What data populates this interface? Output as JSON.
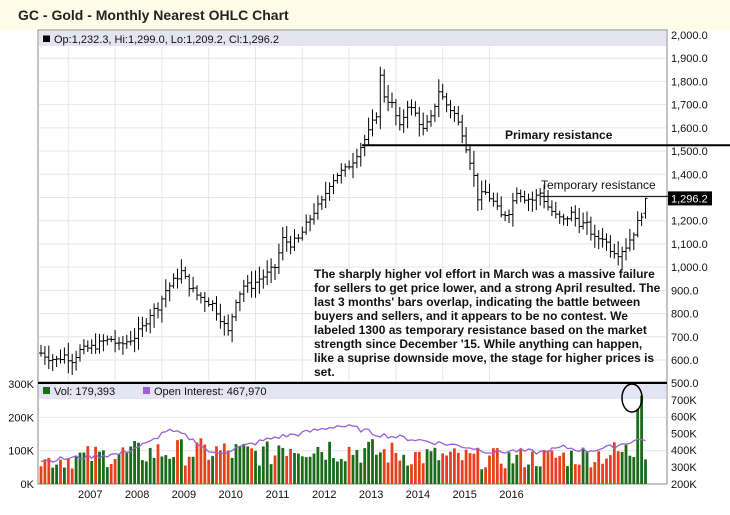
{
  "title": "GC - Gold - Monthly Nearest OHLC Chart",
  "price_legend": "Op:1,232.3, Hi:1,299.0, Lo:1,209.2, Cl:1,296.2",
  "last_price_label": "1,296.2",
  "vol_legend": "Vol: 179,393",
  "oi_legend": "Open Interest: 467,970",
  "primary_resistance_label": "Primary resistance",
  "temporary_resistance_label": "Temporary resistance",
  "annotation_lines": [
    "The sharply higher vol effort in March was a massive failure",
    "for sellers to get price lower, and a strong April resulted.  The",
    "last 3 months' bars overlap, indicating the battle between",
    "buyers and sellers, and it appears to be no contest.  We",
    "labeled 1300 as temporary resistance based on the market",
    "strength since December '15.  While anything can happen,",
    "like a suprise downside move, the stage for higher prices is",
    "set."
  ],
  "colors": {
    "price_bar": "#000000",
    "vol_up": "#1a6b1a",
    "vol_down": "#e8401a",
    "open_interest": "#9b5fd6",
    "legend_bg": "#e4e4f2",
    "title_bg": "#fffde8",
    "last_price_bg": "#000000",
    "circle": "#000000"
  },
  "chart_data": {
    "type": "ohlc",
    "x_tick_labels": [
      "2007",
      "2008",
      "2009",
      "2010",
      "2011",
      "2012",
      "2013",
      "2014",
      "2015",
      "2016"
    ],
    "price_axis": {
      "ylim": [
        550,
        2000
      ],
      "ticks": [
        "2,000.0",
        "1,900.0",
        "1,800.0",
        "1,700.0",
        "1,600.0",
        "1,500.0",
        "1,400.0",
        "1,300.0",
        "1,200.0",
        "1,100.0",
        "1,000.0",
        "900.0",
        "800.0",
        "700.0",
        "600.0"
      ]
    },
    "volume_axis_left": {
      "ylim": [
        0,
        300000
      ],
      "ticks": [
        "300K",
        "200K",
        "100K",
        "0K"
      ]
    },
    "open_interest_axis_right": {
      "ylim": [
        200000,
        800000
      ],
      "ticks": [
        "500.0",
        "700K",
        "600K",
        "500K",
        "400K",
        "300K",
        "200K"
      ]
    },
    "primary_resistance": 1525,
    "temporary_resistance": 1305,
    "last_bar": {
      "open": 1232.3,
      "high": 1299.0,
      "low": 1209.2,
      "close": 1296.2
    },
    "start": "2006-06",
    "close_path": [
      [
        0,
        630
      ],
      [
        2,
        610
      ],
      [
        4,
        600
      ],
      [
        6,
        620
      ],
      [
        8,
        600
      ],
      [
        10,
        640
      ],
      [
        12,
        650
      ],
      [
        14,
        660
      ],
      [
        16,
        680
      ],
      [
        18,
        690
      ],
      [
        20,
        660
      ],
      [
        22,
        680
      ],
      [
        24,
        700
      ],
      [
        26,
        740
      ],
      [
        28,
        800
      ],
      [
        30,
        830
      ],
      [
        32,
        900
      ],
      [
        34,
        940
      ],
      [
        36,
        980
      ],
      [
        38,
        920
      ],
      [
        40,
        880
      ],
      [
        42,
        860
      ],
      [
        44,
        840
      ],
      [
        46,
        780
      ],
      [
        48,
        720
      ],
      [
        50,
        860
      ],
      [
        52,
        920
      ],
      [
        54,
        920
      ],
      [
        56,
        950
      ],
      [
        58,
        970
      ],
      [
        60,
        1000
      ],
      [
        62,
        1120
      ],
      [
        64,
        1100
      ],
      [
        66,
        1120
      ],
      [
        68,
        1180
      ],
      [
        70,
        1240
      ],
      [
        72,
        1280
      ],
      [
        74,
        1360
      ],
      [
        76,
        1400
      ],
      [
        78,
        1420
      ],
      [
        80,
        1460
      ],
      [
        82,
        1520
      ],
      [
        84,
        1580
      ],
      [
        86,
        1660
      ],
      [
        87,
        1820
      ],
      [
        88,
        1740
      ],
      [
        90,
        1700
      ],
      [
        92,
        1600
      ],
      [
        94,
        1700
      ],
      [
        96,
        1660
      ],
      [
        98,
        1590
      ],
      [
        100,
        1640
      ],
      [
        102,
        1760
      ],
      [
        104,
        1700
      ],
      [
        106,
        1660
      ],
      [
        108,
        1580
      ],
      [
        110,
        1460
      ],
      [
        111,
        1390
      ],
      [
        112,
        1300
      ],
      [
        114,
        1320
      ],
      [
        116,
        1280
      ],
      [
        118,
        1220
      ],
      [
        120,
        1240
      ],
      [
        122,
        1330
      ],
      [
        124,
        1300
      ],
      [
        126,
        1290
      ],
      [
        128,
        1320
      ],
      [
        130,
        1260
      ],
      [
        132,
        1220
      ],
      [
        134,
        1200
      ],
      [
        136,
        1230
      ],
      [
        138,
        1190
      ],
      [
        140,
        1180
      ],
      [
        142,
        1120
      ],
      [
        144,
        1130
      ],
      [
        146,
        1080
      ],
      [
        148,
        1060
      ],
      [
        150,
        1090
      ],
      [
        152,
        1150
      ],
      [
        154,
        1230
      ],
      [
        155,
        1296
      ]
    ],
    "volume_base": 110000,
    "open_interest_path": [
      [
        0,
        340000
      ],
      [
        10,
        360000
      ],
      [
        20,
        380000
      ],
      [
        28,
        450000
      ],
      [
        32,
        520000
      ],
      [
        36,
        500000
      ],
      [
        40,
        450000
      ],
      [
        44,
        380000
      ],
      [
        48,
        400000
      ],
      [
        54,
        440000
      ],
      [
        60,
        480000
      ],
      [
        66,
        500000
      ],
      [
        72,
        530000
      ],
      [
        76,
        550000
      ],
      [
        80,
        540000
      ],
      [
        86,
        500000
      ],
      [
        92,
        480000
      ],
      [
        98,
        460000
      ],
      [
        104,
        440000
      ],
      [
        110,
        420000
      ],
      [
        116,
        390000
      ],
      [
        122,
        400000
      ],
      [
        128,
        390000
      ],
      [
        134,
        420000
      ],
      [
        140,
        400000
      ],
      [
        146,
        420000
      ],
      [
        152,
        460000
      ],
      [
        155,
        470000
      ]
    ]
  }
}
